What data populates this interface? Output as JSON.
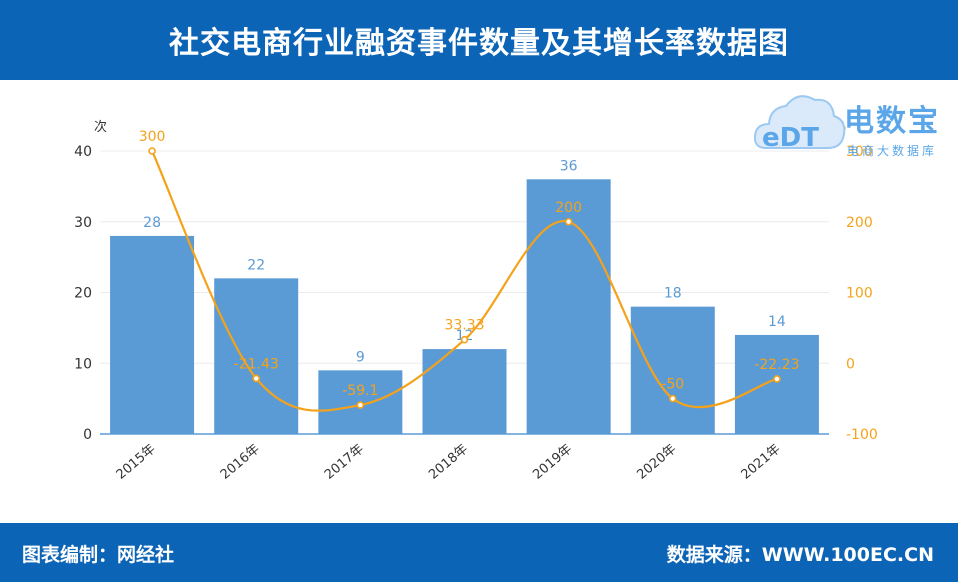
{
  "header": {
    "title": "社交电商行业融资事件数量及其增长率数据图"
  },
  "footer": {
    "left": "图表编制：网经社",
    "right": "数据来源：WWW.100EC.CN"
  },
  "watermark": {
    "brand": "电数宝",
    "sub": "电商大数据库",
    "mark": "eDT"
  },
  "chart_data": {
    "type": "bar+line",
    "categories": [
      "2015年",
      "2016年",
      "2017年",
      "2018年",
      "2019年",
      "2020年",
      "2021年"
    ],
    "series": [
      {
        "values": [
          28,
          22,
          9,
          12,
          36,
          18,
          14
        ],
        "type": "bar",
        "axis": "left",
        "color": "#5b9bd5"
      },
      {
        "values": [
          300,
          -21.43,
          -59.1,
          33.33,
          200,
          -50,
          -22.23
        ],
        "type": "line",
        "axis": "right",
        "color": "#f5a21b"
      }
    ],
    "y_left": {
      "unit": "次",
      "range": [
        0,
        40
      ],
      "ticks": [
        0,
        10,
        20,
        30,
        40
      ]
    },
    "y_right": {
      "unit": "%",
      "range": [
        -100,
        300
      ],
      "ticks": [
        -100,
        0,
        100,
        200,
        300
      ]
    },
    "grid": true,
    "colors": {
      "bar": "#5b9bd5",
      "line": "#f5a21b",
      "header": "#0c64b6"
    }
  }
}
